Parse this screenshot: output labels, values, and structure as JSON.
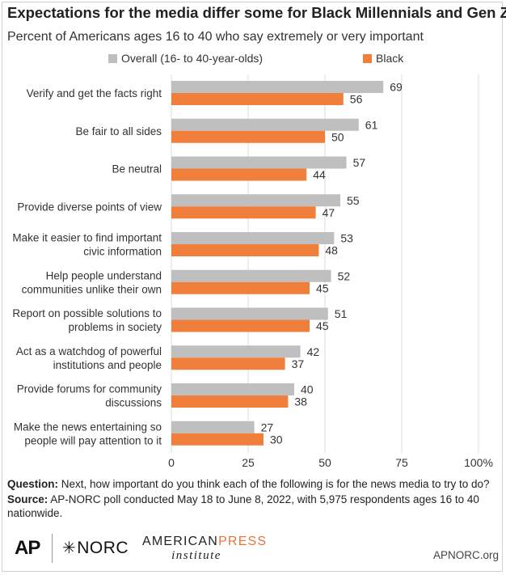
{
  "title": "Expectations for the media differ some for Black Millennials and Gen Z.",
  "subtitle": "Percent of Americans ages 16 to 40 who say extremely or very important",
  "colors": {
    "overall": "#bfbfbf",
    "black": "#f07f3b",
    "grid": "#dddddd",
    "text": "#333333"
  },
  "chart_data": {
    "type": "bar",
    "orientation": "horizontal",
    "categories": [
      [
        "Verify and get the facts right"
      ],
      [
        "Be fair to all sides"
      ],
      [
        "Be neutral"
      ],
      [
        "Provide diverse points of view"
      ],
      [
        "Make it easier to find important",
        "civic information"
      ],
      [
        "Help people understand",
        "communities unlike their own"
      ],
      [
        "Report on possible solutions to",
        "problems in society"
      ],
      [
        "Act as a watchdog of powerful",
        "institutions and people"
      ],
      [
        "Provide forums for community",
        "discussions"
      ],
      [
        "Make the news entertaining so",
        "people will pay attention to it"
      ]
    ],
    "series": [
      {
        "name": "Overall (16- to 40-year-olds)",
        "values": [
          69,
          61,
          57,
          55,
          53,
          52,
          51,
          42,
          40,
          27
        ]
      },
      {
        "name": "Black",
        "values": [
          56,
          50,
          44,
          47,
          48,
          45,
          45,
          37,
          38,
          30
        ]
      }
    ],
    "xlim": [
      0,
      100
    ],
    "xticks": [
      "0",
      "25",
      "50",
      "75",
      "100%"
    ],
    "grid": true,
    "legend_position": "top"
  },
  "notes": {
    "question_label": "Question:",
    "question_text": " Next, how important do you think each of the following is for the news media to try to do?",
    "source_label": "Source:",
    "source_text": " AP-NORC poll conducted May 18 to June 8, 2022, with 5,975 respondents ages 16 to 40 nationwide."
  },
  "logos": {
    "ap": "AP",
    "norc": "NORC",
    "api_top_a": "AMERICAN",
    "api_top_b": "PRESS",
    "api_bottom": "institute",
    "site": "APNORC.org"
  }
}
